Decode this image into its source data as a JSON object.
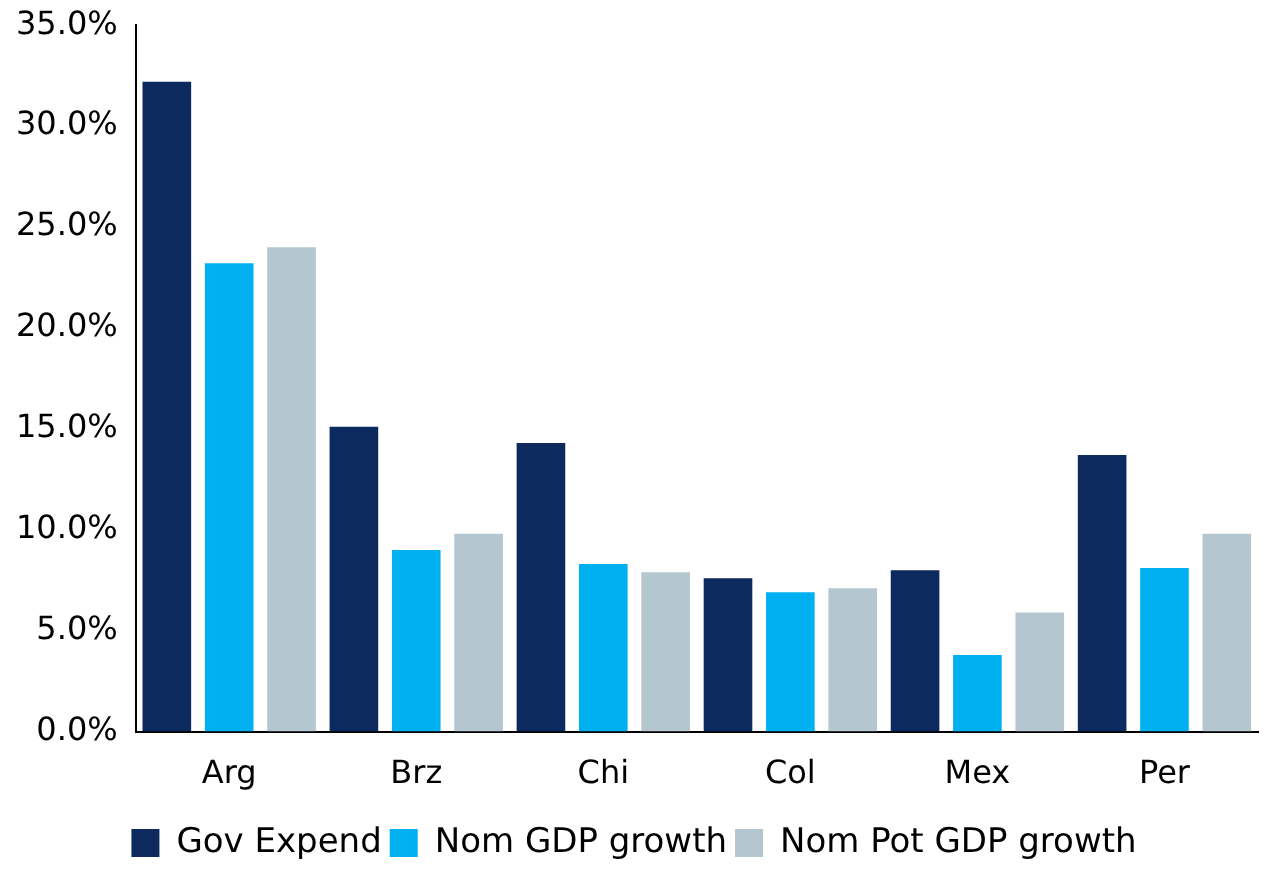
{
  "chart_data": {
    "type": "bar",
    "categories": [
      "Arg",
      "Brz",
      "Chi",
      "Col",
      "Mex",
      "Per"
    ],
    "series": [
      {
        "name": "Gov Expend",
        "color": "#0d2a5e",
        "values": [
          32.2,
          15.1,
          14.3,
          7.6,
          8.0,
          13.7
        ]
      },
      {
        "name": "Nom GDP growth",
        "color": "#00b0f0",
        "values": [
          23.2,
          9.0,
          8.3,
          6.9,
          3.8,
          8.1
        ]
      },
      {
        "name": "Nom Pot GDP growth",
        "color": "#b4c6cf",
        "values": [
          24.0,
          9.8,
          7.9,
          7.1,
          5.9,
          9.8
        ]
      }
    ],
    "ylim": [
      0,
      35
    ],
    "yticks": [
      {
        "value": 0,
        "label": "0.0%"
      },
      {
        "value": 5,
        "label": "5.0%"
      },
      {
        "value": 10,
        "label": "10.0%"
      },
      {
        "value": 15,
        "label": "15.0%"
      },
      {
        "value": 20,
        "label": "20.0%"
      },
      {
        "value": 25,
        "label": "25.0%"
      },
      {
        "value": 30,
        "label": "30.0%"
      },
      {
        "value": 35,
        "label": "35.0%"
      }
    ],
    "grid": false,
    "legend": "bottom"
  }
}
